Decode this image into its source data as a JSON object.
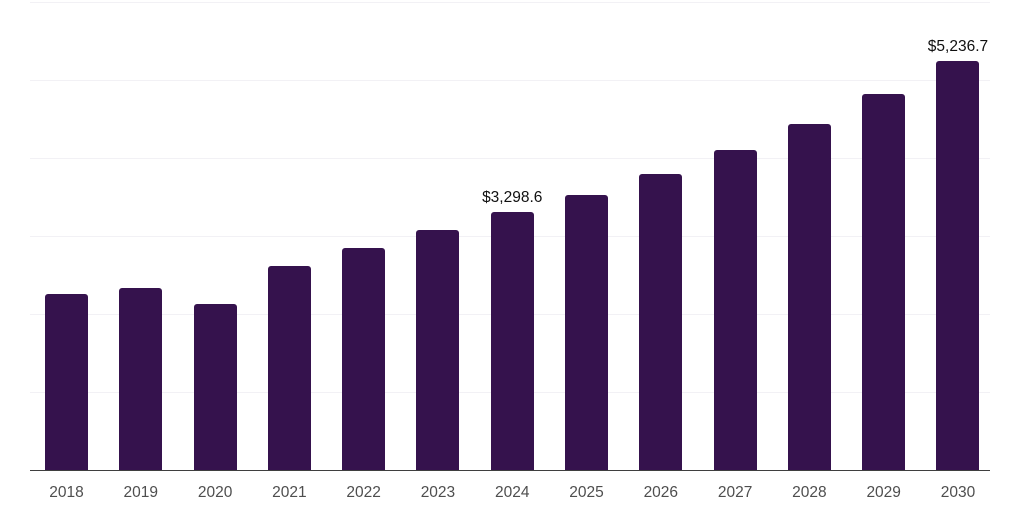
{
  "chart_data": {
    "type": "bar",
    "title": "",
    "xlabel": "",
    "ylabel": "",
    "categories": [
      "2018",
      "2019",
      "2020",
      "2021",
      "2022",
      "2023",
      "2024",
      "2025",
      "2026",
      "2027",
      "2028",
      "2029",
      "2030"
    ],
    "values": [
      2250,
      2325,
      2120,
      2610,
      2840,
      3080,
      3298.6,
      3525,
      3795,
      4095,
      4435,
      4820,
      5236.7
    ],
    "annotations": {
      "2024": "$3,298.6",
      "2030": "$5,236.7"
    },
    "ylim": [
      0,
      6000
    ],
    "gridline_values": [
      1000,
      2000,
      3000,
      4000,
      5000,
      6000
    ],
    "grid": "horizontal-only",
    "legend": "none",
    "y_axis_tick_labels": "none",
    "colors": {
      "bar": "#35124d",
      "gridline": "#f2f1f5",
      "axis": "#3f3f3f",
      "tick_label": "#4e4e4e",
      "data_label": "#101010",
      "background": "#ffffff"
    }
  }
}
